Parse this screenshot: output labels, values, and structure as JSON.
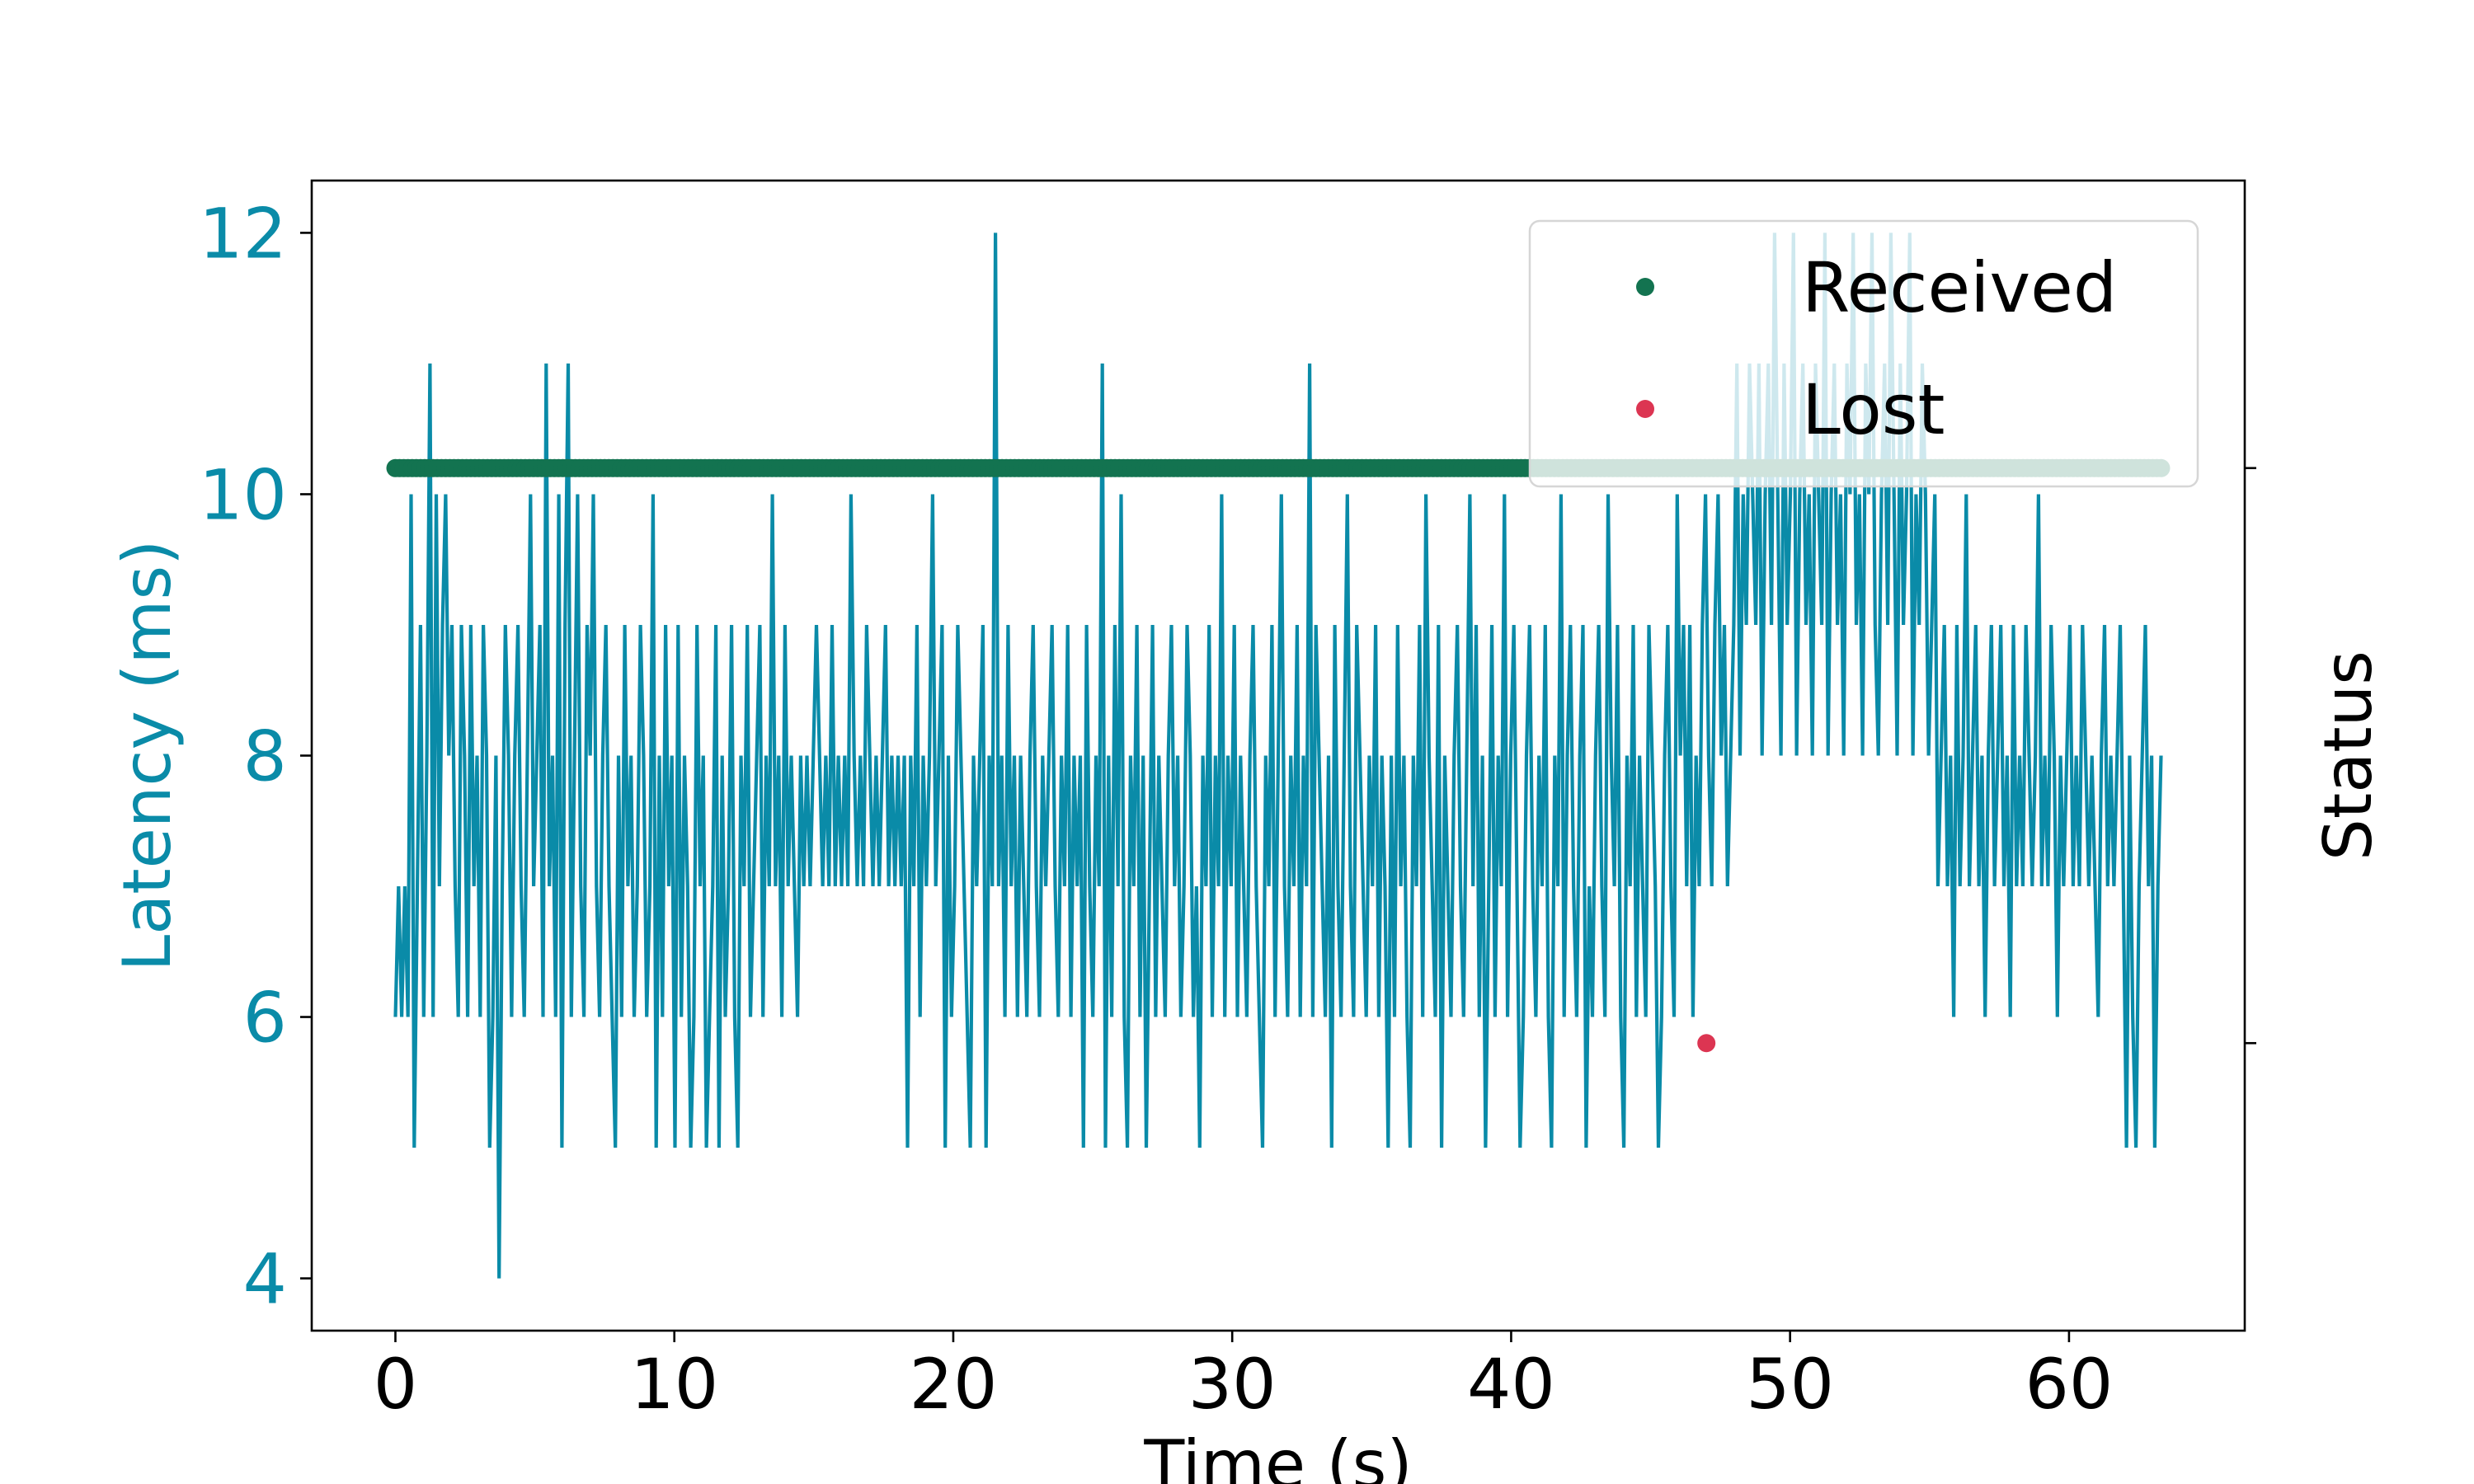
{
  "chart_data": {
    "type": "line",
    "title": "",
    "xlabel": "Time (s)",
    "ylabel": "Latency (ms)",
    "y2label": "Status",
    "xlim": [
      -3,
      66.3
    ],
    "ylim": [
      3.6,
      12.4
    ],
    "xticks": [
      0,
      10,
      20,
      30,
      40,
      50,
      60
    ],
    "yticks": [
      4,
      6,
      8,
      10,
      12
    ],
    "grid": false,
    "legend": "top-right",
    "colors": {
      "latency": "#0a8ba8",
      "received": "#137350",
      "lost": "#dc3552",
      "axes": "#000000",
      "ylabel": "#0a8ba8"
    },
    "series": [
      {
        "key": "latency",
        "axis": "left",
        "style": "line",
        "sample_interval_s": 0.1,
        "values": [
          6,
          7,
          6,
          7,
          6,
          10,
          5,
          7,
          9,
          6,
          8,
          11,
          6,
          10,
          7,
          9,
          10,
          8,
          9,
          7,
          6,
          9,
          8,
          6,
          9,
          7,
          8,
          6,
          9,
          8,
          5,
          6,
          8,
          4,
          7,
          9,
          8,
          6,
          8,
          9,
          7,
          6,
          8,
          10,
          7,
          8,
          9,
          6,
          11,
          7,
          8,
          6,
          10,
          5,
          9,
          11,
          6,
          8,
          10,
          7,
          6,
          9,
          8,
          10,
          7,
          6,
          8,
          9,
          7,
          6,
          5,
          8,
          6,
          9,
          7,
          8,
          6,
          7,
          9,
          8,
          6,
          7,
          10,
          5,
          8,
          6,
          9,
          7,
          8,
          5,
          9,
          6,
          8,
          7,
          5,
          6,
          9,
          7,
          8,
          5,
          6,
          7,
          9,
          5,
          8,
          6,
          7,
          9,
          6,
          5,
          8,
          7,
          9,
          6,
          7,
          8,
          9,
          6,
          8,
          7,
          10,
          7,
          8,
          6,
          9,
          7,
          8,
          7,
          6,
          8,
          7,
          8,
          7,
          8,
          9,
          8,
          7,
          8,
          7,
          9,
          7,
          8,
          7,
          8,
          7,
          10,
          8,
          7,
          8,
          7,
          9,
          8,
          7,
          8,
          7,
          8,
          9,
          7,
          8,
          7,
          8,
          7,
          8,
          5,
          8,
          7,
          9,
          6,
          8,
          7,
          8,
          10,
          7,
          8,
          9,
          5,
          8,
          6,
          7,
          9,
          8,
          7,
          6,
          5,
          8,
          7,
          8,
          9,
          5,
          8,
          7,
          12,
          7,
          8,
          6,
          9,
          7,
          8,
          6,
          8,
          7,
          6,
          8,
          9,
          7,
          6,
          8,
          7,
          8,
          9,
          7,
          6,
          8,
          7,
          9,
          6,
          8,
          7,
          8,
          5,
          9,
          7,
          6,
          8,
          7,
          11,
          5,
          8,
          6,
          9,
          7,
          10,
          6,
          5,
          8,
          7,
          9,
          6,
          8,
          5,
          7,
          9,
          6,
          8,
          7,
          6,
          8,
          9,
          7,
          8,
          6,
          7,
          9,
          8,
          6,
          7,
          5,
          8,
          7,
          9,
          6,
          8,
          7,
          10,
          6,
          8,
          7,
          9,
          6,
          8,
          7,
          6,
          8,
          9,
          7,
          6,
          5,
          8,
          7,
          9,
          6,
          8,
          10,
          7,
          6,
          8,
          7,
          9,
          6,
          8,
          7,
          11,
          6,
          9,
          8,
          7,
          6,
          8,
          5,
          9,
          7,
          6,
          8,
          10,
          7,
          6,
          9,
          8,
          7,
          6,
          8,
          7,
          9,
          6,
          8,
          7,
          5,
          8,
          6,
          9,
          7,
          8,
          6,
          5,
          8,
          7,
          9,
          6,
          10,
          8,
          7,
          6,
          9,
          5,
          8,
          7,
          6,
          8,
          9,
          7,
          6,
          8,
          10,
          7,
          9,
          6,
          8,
          5,
          7,
          9,
          6,
          8,
          7,
          10,
          6,
          8,
          9,
          7,
          5,
          6,
          8,
          9,
          7,
          6,
          8,
          7,
          9,
          6,
          5,
          8,
          7,
          10,
          6,
          8,
          9,
          7,
          6,
          8,
          9,
          5,
          7,
          6,
          8,
          9,
          7,
          6,
          10,
          8,
          7,
          9,
          6,
          5,
          8,
          7,
          9,
          6,
          8,
          7,
          6,
          9,
          8,
          7,
          5,
          6,
          8,
          9,
          7,
          6,
          10,
          8,
          9,
          7,
          9,
          6,
          8,
          7,
          9,
          10,
          8,
          7,
          9,
          10,
          8,
          9,
          7,
          8,
          9,
          11,
          8,
          10,
          9,
          11,
          10,
          9,
          11,
          8,
          10,
          11,
          9,
          12,
          10,
          8,
          11,
          9,
          10,
          12,
          8,
          10,
          11,
          9,
          10,
          8,
          11,
          10,
          9,
          12,
          8,
          10,
          11,
          9,
          10,
          8,
          11,
          10,
          12,
          9,
          10,
          8,
          11,
          10,
          12,
          9,
          8,
          10,
          11,
          9,
          12,
          10,
          8,
          11,
          9,
          10,
          12,
          8,
          10,
          9,
          11,
          10,
          8,
          9,
          10,
          7,
          8,
          9,
          7,
          8,
          6,
          9,
          7,
          8,
          10,
          7,
          8,
          9,
          7,
          8,
          6,
          8,
          9,
          7,
          8,
          9,
          7,
          8,
          6,
          9,
          7,
          8,
          7,
          9,
          8,
          7,
          8,
          10,
          7,
          8,
          7,
          9,
          8,
          6,
          8,
          7,
          8,
          9,
          7,
          8,
          7,
          9,
          8,
          7,
          8,
          7,
          6,
          8,
          9,
          7,
          8,
          7,
          8,
          9,
          7,
          5,
          8,
          6,
          5,
          7,
          8,
          9,
          7,
          8,
          5,
          7,
          8
        ]
      },
      {
        "name": "Received",
        "key": "received",
        "axis": "right",
        "style": "marker",
        "marker_y": 10.2,
        "x_start": 0,
        "x_end": 63.3,
        "x_step": 0.15
      },
      {
        "name": "Lost",
        "key": "lost",
        "axis": "right",
        "style": "marker",
        "points": [
          {
            "x": 47.0,
            "y": 5.8
          }
        ]
      }
    ],
    "right_axis_ticks_at_left_y": [
      10.2,
      5.8
    ]
  }
}
